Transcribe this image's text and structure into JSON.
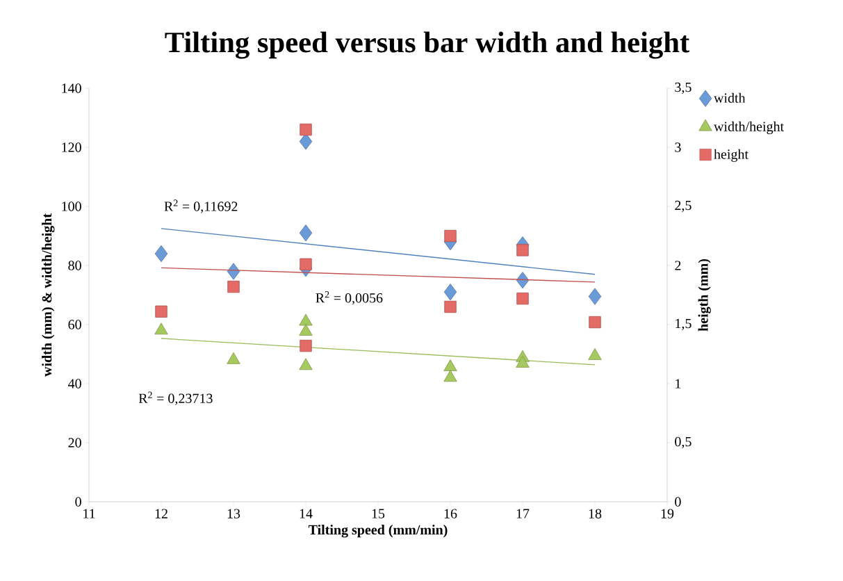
{
  "chart_data": {
    "type": "scatter",
    "title": "Tilting speed versus bar width and height",
    "xlabel": "Tilting speed (mm/min)",
    "ylabel": "width (mm) & width/height",
    "y2label": "heigth (mm)",
    "xlim": [
      11,
      19
    ],
    "xticks": [
      11,
      12,
      13,
      14,
      15,
      16,
      17,
      18,
      19
    ],
    "ylim": [
      0,
      140
    ],
    "yticks": [
      0,
      20,
      40,
      60,
      80,
      100,
      120,
      140
    ],
    "y2lim": [
      0,
      3.5
    ],
    "y2ticks": [
      0,
      {
        "value": 0.5,
        "label": "0,5"
      },
      1,
      {
        "value": 1.5,
        "label": "1,5"
      },
      2,
      {
        "value": 2.5,
        "label": "2,5"
      },
      3,
      {
        "value": 3.5,
        "label": "3,5"
      }
    ],
    "legend": "right",
    "series": [
      {
        "name": "width",
        "type": "scatter",
        "marker": "diamond",
        "color": "#6a9bd8",
        "x": [
          12,
          13,
          14,
          14,
          14,
          16,
          16,
          17,
          17,
          18
        ],
        "values": [
          84,
          78,
          122,
          91,
          79,
          88,
          71,
          87,
          75,
          69.5
        ]
      },
      {
        "name": "width/height",
        "type": "scatter",
        "marker": "triangle",
        "color": "#a6c95f",
        "x": [
          12,
          13,
          14,
          14,
          14,
          16,
          16,
          17,
          17,
          18
        ],
        "values": [
          58,
          48,
          61,
          57.6,
          46,
          45.6,
          42,
          48.7,
          46.8,
          49.4
        ]
      },
      {
        "name": "height",
        "type": "scatter",
        "marker": "square",
        "axis": "y2",
        "color": "#e46a66",
        "x": [
          12,
          13,
          14,
          14,
          14,
          16,
          16,
          17,
          17,
          18
        ],
        "values": [
          1.61,
          1.82,
          3.15,
          2.01,
          1.32,
          2.25,
          1.65,
          2.13,
          1.72,
          1.52
        ]
      },
      {
        "type": "line",
        "color": "#4f81bd",
        "x": [
          12,
          18
        ],
        "values": [
          92.5,
          77
        ]
      },
      {
        "type": "line",
        "color": "#9bbb59",
        "x": [
          12,
          18
        ],
        "values": [
          55.3,
          46.4
        ]
      },
      {
        "type": "line",
        "axis": "y2",
        "color": "#c0504d",
        "x": [
          12,
          18
        ],
        "values": [
          1.98,
          1.86
        ]
      }
    ],
    "annotations": [
      "R$^{2}$ = 0,11692",
      "R$^{2}$ = 0,0056",
      "R$^{2}$ = 0,23713"
    ]
  }
}
